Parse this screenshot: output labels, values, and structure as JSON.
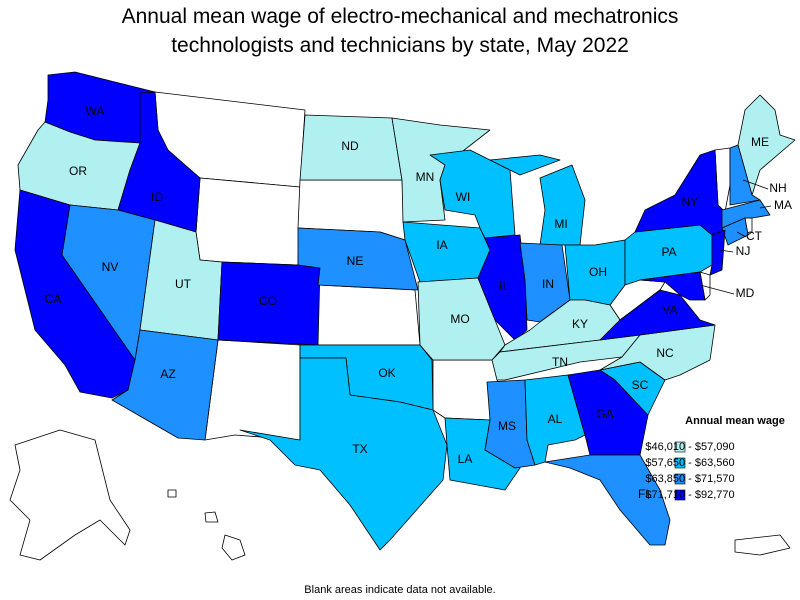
{
  "title": "Annual mean wage of electro-mechanical and mechatronics technologists and technicians by state, May 2022",
  "legend": {
    "title": "Annual mean wage",
    "items": [
      {
        "label": "$46,010 - $57,090",
        "color": "#b0f0f0"
      },
      {
        "label": "$57,650 - $63,560",
        "color": "#00c0ff"
      },
      {
        "label": "$63,850 - $71,570",
        "color": "#1e90ff"
      },
      {
        "label": "$71,710 - $92,770",
        "color": "#0000ff"
      }
    ]
  },
  "states": [
    {
      "label": "WA",
      "class": 3
    },
    {
      "label": "OR",
      "class": 0
    },
    {
      "label": "CA",
      "class": 3
    },
    {
      "label": "ID",
      "class": 3
    },
    {
      "label": "NV",
      "class": 2
    },
    {
      "label": "UT",
      "class": 0
    },
    {
      "label": "AZ",
      "class": 2
    },
    {
      "label": "CO",
      "class": 3
    },
    {
      "label": "ND",
      "class": 0
    },
    {
      "label": "NE",
      "class": 2
    },
    {
      "label": "OK",
      "class": 1
    },
    {
      "label": "TX",
      "class": 1
    },
    {
      "label": "MN",
      "class": 0
    },
    {
      "label": "IA",
      "class": 1
    },
    {
      "label": "MO",
      "class": 0
    },
    {
      "label": "LA",
      "class": 1
    },
    {
      "label": "WI",
      "class": 1
    },
    {
      "label": "IL",
      "class": 3
    },
    {
      "label": "MI",
      "class": 1
    },
    {
      "label": "IN",
      "class": 2
    },
    {
      "label": "OH",
      "class": 1
    },
    {
      "label": "KY",
      "class": 0
    },
    {
      "label": "TN",
      "class": 0
    },
    {
      "label": "MS",
      "class": 2
    },
    {
      "label": "AL",
      "class": 1
    },
    {
      "label": "GA",
      "class": 3
    },
    {
      "label": "FL",
      "class": 2
    },
    {
      "label": "SC",
      "class": 1
    },
    {
      "label": "NC",
      "class": 0
    },
    {
      "label": "VA",
      "class": 3
    },
    {
      "label": "PA",
      "class": 1
    },
    {
      "label": "NY",
      "class": 3
    },
    {
      "label": "ME",
      "class": 0
    },
    {
      "label": "NH",
      "class": 2
    },
    {
      "label": "MA",
      "class": 2
    },
    {
      "label": "CT",
      "class": 2
    },
    {
      "label": "NJ",
      "class": 3
    },
    {
      "label": "MD",
      "class": 3
    }
  ],
  "footnote": "Blank areas indicate data not available."
}
